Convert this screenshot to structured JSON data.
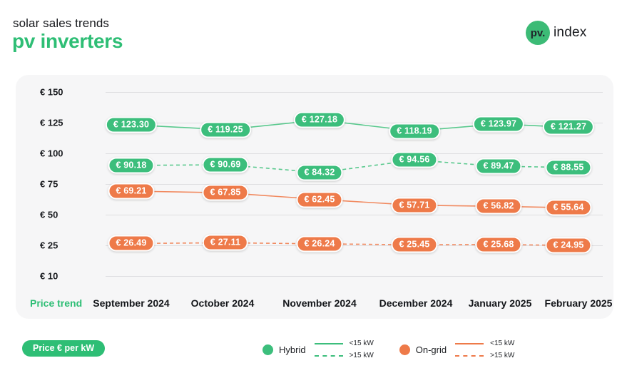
{
  "header": {
    "subtitle": "solar sales trends",
    "title": "pv inverters",
    "logo": {
      "mark": "pv.",
      "name": "index"
    }
  },
  "chart_data": {
    "type": "line",
    "title": "solar sales trends — pv inverters",
    "unit_badge": "Price € per kW",
    "row_label": "Price trend",
    "value_prefix": "€ ",
    "grid": true,
    "ylim": [
      10,
      150
    ],
    "legend_position": "bottom",
    "categories": [
      "September 2024",
      "October 2024",
      "November 2024",
      "December 2024",
      "January 2025",
      "February 2025"
    ],
    "y_ticks": {
      "labels": [
        "€ 150",
        "€ 125",
        "€ 100",
        "€ 75",
        "€ 50",
        "€ 25",
        "€ 10"
      ],
      "values": [
        150,
        125,
        100,
        75,
        50,
        25,
        10
      ]
    },
    "series": [
      {
        "name": "Hybrid <15 kW",
        "group": "Hybrid",
        "size": "<15 kW",
        "style": "solid",
        "color": "#3cbe7c",
        "line_color": "#5ac98e",
        "values": [
          123.3,
          119.25,
          127.18,
          118.19,
          123.97,
          121.27
        ]
      },
      {
        "name": "Hybrid >15 kW",
        "group": "Hybrid",
        "size": ">15 kW",
        "style": "dashed",
        "color": "#3cbe7c",
        "line_color": "#5ac98e",
        "values": [
          90.18,
          90.69,
          84.32,
          94.56,
          89.47,
          88.55
        ]
      },
      {
        "name": "On-grid <15 kW",
        "group": "On-grid",
        "size": "<15 kW",
        "style": "solid",
        "color": "#ee7a49",
        "line_color": "#f18a60",
        "values": [
          69.21,
          67.85,
          62.45,
          57.71,
          56.82,
          55.64
        ]
      },
      {
        "name": "On-grid >15 kW",
        "group": "On-grid",
        "size": ">15 kW",
        "style": "dashed",
        "color": "#ee7a49",
        "line_color": "#f18a60",
        "values": [
          26.49,
          27.11,
          26.24,
          25.45,
          25.68,
          24.95
        ]
      }
    ],
    "legend": [
      {
        "name": "Hybrid",
        "color": "#3cbe7c",
        "items": [
          {
            "style": "solid",
            "label": "<15 kW"
          },
          {
            "style": "dashed",
            "label": ">15 kW"
          }
        ]
      },
      {
        "name": "On-grid",
        "color": "#ee7a49",
        "items": [
          {
            "style": "solid",
            "label": "<15 kW"
          },
          {
            "style": "dashed",
            "label": ">15 kW"
          }
        ]
      }
    ]
  },
  "colors": {
    "accent_green": "#2ebe75",
    "accent_orange": "#ee7a49",
    "card_bg": "#f6f6f7",
    "grid_line": "#dedee1",
    "text_dark": "#17191d"
  }
}
